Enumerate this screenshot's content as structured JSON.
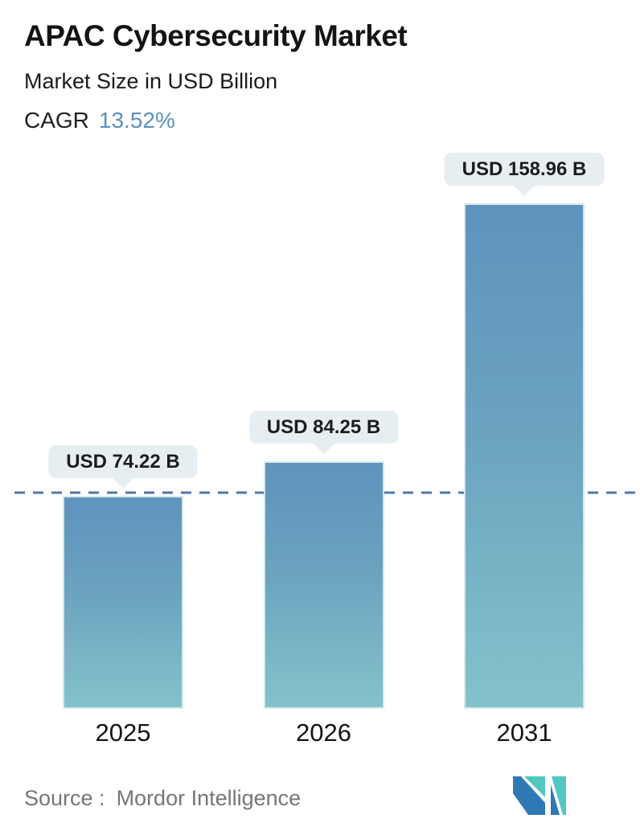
{
  "header": {
    "title": "APAC Cybersecurity Market",
    "subtitle": "Market Size in USD Billion",
    "cagr_label": "CAGR",
    "cagr_value": "13.52%"
  },
  "chart_data": {
    "type": "bar",
    "title": "APAC Cybersecurity Market",
    "subtitle": "Market Size in USD Billion",
    "unit": "USD Billion",
    "cagr_percent": 13.52,
    "categories": [
      "2025",
      "2026",
      "2031"
    ],
    "values": [
      74.22,
      84.25,
      158.96
    ],
    "points": [
      {
        "category": "2025",
        "value": 74.22,
        "label": "USD 74.22 B"
      },
      {
        "category": "2026",
        "value": 84.25,
        "label": "USD 84.25 B"
      },
      {
        "category": "2031",
        "value": 158.96,
        "label": "USD 158.96 B"
      }
    ],
    "reference_line": {
      "style": "dashed",
      "at_value": 74.22
    },
    "legend": "none",
    "grid": false,
    "colors": {
      "bar_gradient_top": "#5e93be",
      "bar_gradient_bottom": "#84c2ca",
      "dashed_line": "#4d7aa6",
      "label_bubble_bg": "#e7eef1",
      "cagr_accent": "#5b91c0"
    }
  },
  "footer": {
    "source_prefix": "Source :",
    "source_name": "Mordor Intelligence",
    "logo_name": "mordor-intelligence-logo",
    "logo_colors": {
      "teal": "#53c6c0",
      "blue": "#2e79b4"
    }
  }
}
